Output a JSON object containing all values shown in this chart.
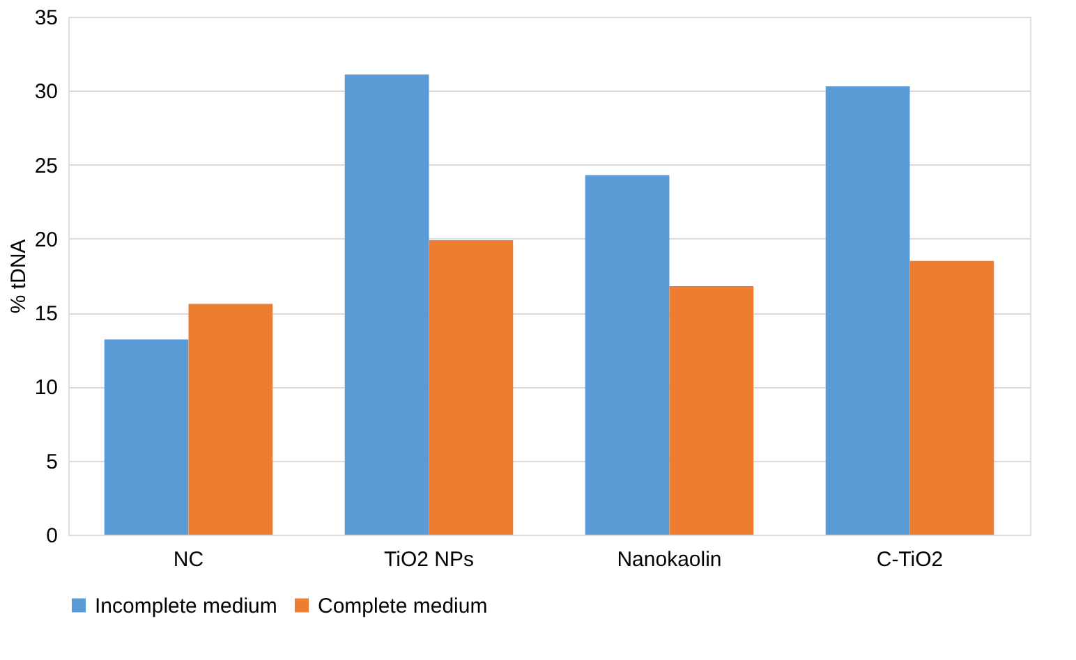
{
  "chart_data": {
    "type": "bar",
    "ylabel": "% tDNA",
    "categories": [
      "NC",
      "TiO2 NPs",
      "Nanokaolin",
      "C-TiO2"
    ],
    "series": [
      {
        "name": "Incomplete medium",
        "color": "#5b9bd5",
        "values": [
          13.2,
          31.1,
          24.3,
          30.3
        ]
      },
      {
        "name": "Complete medium",
        "color": "#ed7d31",
        "values": [
          15.6,
          19.9,
          16.8,
          18.5
        ]
      }
    ],
    "ylim": [
      0,
      35
    ],
    "yticks": [
      0,
      5,
      10,
      15,
      20,
      25,
      30,
      35
    ],
    "grid": "y",
    "legend": "bottom"
  }
}
